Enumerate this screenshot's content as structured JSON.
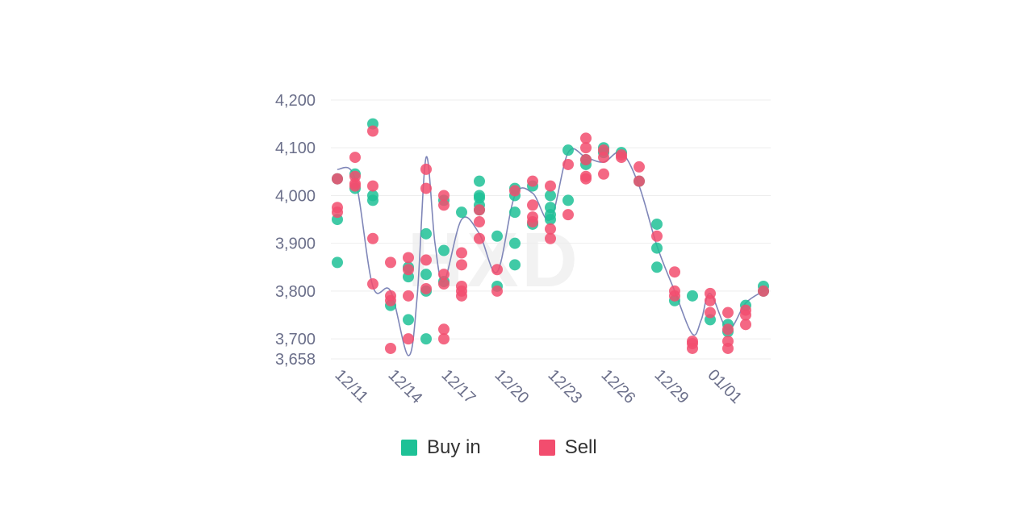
{
  "watermark": "HXD",
  "chart_data": {
    "type": "scatter",
    "ylim": [
      3658,
      4200
    ],
    "y_ticks": [
      "4,200",
      "4,100",
      "4,000",
      "3,900",
      "3,800",
      "3,700",
      "3,658"
    ],
    "y_tick_values": [
      4200,
      4100,
      4000,
      3900,
      3800,
      3700,
      3658
    ],
    "x_ticks": [
      "12/11",
      "12/14",
      "12/17",
      "12/20",
      "12/23",
      "12/26",
      "12/29",
      "01/01"
    ],
    "x_tick_days": [
      0,
      3,
      6,
      9,
      12,
      15,
      18,
      21
    ],
    "grid": true,
    "legend_position": "bottom-center",
    "colors": {
      "buy": "#1ec196",
      "sell": "#f24d6e",
      "trend": "#7f86b8"
    },
    "series": [
      {
        "name": "Buy in",
        "color": "#1ec196",
        "points": [
          [
            0,
            3950
          ],
          [
            0,
            3860
          ],
          [
            0,
            4035
          ],
          [
            1,
            4045
          ],
          [
            1,
            4015
          ],
          [
            2,
            4150
          ],
          [
            2,
            4000
          ],
          [
            2,
            3990
          ],
          [
            3,
            3770
          ],
          [
            4,
            3740
          ],
          [
            4,
            3830
          ],
          [
            4,
            3850
          ],
          [
            5,
            3920
          ],
          [
            5,
            3835
          ],
          [
            5,
            3800
          ],
          [
            5,
            3700
          ],
          [
            6,
            3885
          ],
          [
            6,
            3820
          ],
          [
            6,
            3990
          ],
          [
            7,
            3965
          ],
          [
            8,
            4030
          ],
          [
            8,
            4000
          ],
          [
            8,
            3995
          ],
          [
            8,
            3980
          ],
          [
            8,
            3970
          ],
          [
            9,
            3915
          ],
          [
            9,
            3810
          ],
          [
            10,
            4015
          ],
          [
            10,
            3965
          ],
          [
            10,
            3900
          ],
          [
            10,
            3855
          ],
          [
            10,
            4000
          ],
          [
            11,
            4020
          ],
          [
            11,
            3940
          ],
          [
            12,
            4000
          ],
          [
            12,
            3975
          ],
          [
            12,
            3960
          ],
          [
            12,
            3950
          ],
          [
            13,
            4095
          ],
          [
            13,
            3990
          ],
          [
            14,
            4075
          ],
          [
            14,
            4065
          ],
          [
            15,
            4100
          ],
          [
            15,
            4090
          ],
          [
            16,
            4090
          ],
          [
            17,
            4030
          ],
          [
            18,
            3940
          ],
          [
            18,
            3890
          ],
          [
            18,
            3850
          ],
          [
            19,
            3780
          ],
          [
            20,
            3790
          ],
          [
            21,
            3740
          ],
          [
            22,
            3730
          ],
          [
            22,
            3715
          ],
          [
            23,
            3770
          ],
          [
            24,
            3810
          ],
          [
            24,
            3800
          ]
        ]
      },
      {
        "name": "Sell",
        "color": "#f24d6e",
        "points": [
          [
            0,
            4035
          ],
          [
            0,
            3975
          ],
          [
            0,
            3965
          ],
          [
            1,
            4080
          ],
          [
            1,
            4040
          ],
          [
            1,
            4025
          ],
          [
            1,
            4020
          ],
          [
            2,
            4135
          ],
          [
            2,
            4020
          ],
          [
            2,
            3910
          ],
          [
            2,
            3815
          ],
          [
            3,
            3790
          ],
          [
            3,
            3780
          ],
          [
            3,
            3680
          ],
          [
            3,
            3860
          ],
          [
            4,
            3870
          ],
          [
            4,
            3845
          ],
          [
            4,
            3790
          ],
          [
            4,
            3700
          ],
          [
            5,
            4055
          ],
          [
            5,
            4015
          ],
          [
            5,
            3865
          ],
          [
            5,
            3805
          ],
          [
            6,
            4000
          ],
          [
            6,
            3980
          ],
          [
            6,
            3835
          ],
          [
            6,
            3720
          ],
          [
            6,
            3700
          ],
          [
            6,
            3815
          ],
          [
            7,
            3880
          ],
          [
            7,
            3855
          ],
          [
            7,
            3810
          ],
          [
            7,
            3790
          ],
          [
            7,
            3800
          ],
          [
            8,
            3970
          ],
          [
            8,
            3945
          ],
          [
            8,
            3910
          ],
          [
            9,
            3845
          ],
          [
            9,
            3800
          ],
          [
            10,
            4010
          ],
          [
            11,
            4030
          ],
          [
            11,
            3980
          ],
          [
            11,
            3955
          ],
          [
            11,
            3945
          ],
          [
            12,
            4020
          ],
          [
            12,
            3930
          ],
          [
            12,
            3910
          ],
          [
            13,
            4065
          ],
          [
            13,
            3960
          ],
          [
            14,
            4120
          ],
          [
            14,
            4100
          ],
          [
            14,
            4075
          ],
          [
            14,
            4040
          ],
          [
            14,
            4035
          ],
          [
            15,
            4095
          ],
          [
            15,
            4080
          ],
          [
            15,
            4045
          ],
          [
            16,
            4085
          ],
          [
            16,
            4080
          ],
          [
            17,
            4060
          ],
          [
            17,
            4030
          ],
          [
            18,
            3915
          ],
          [
            19,
            3840
          ],
          [
            19,
            3800
          ],
          [
            19,
            3790
          ],
          [
            20,
            3695
          ],
          [
            20,
            3690
          ],
          [
            20,
            3680
          ],
          [
            21,
            3795
          ],
          [
            21,
            3780
          ],
          [
            21,
            3755
          ],
          [
            22,
            3755
          ],
          [
            22,
            3720
          ],
          [
            22,
            3695
          ],
          [
            22,
            3680
          ],
          [
            23,
            3760
          ],
          [
            23,
            3750
          ],
          [
            23,
            3730
          ],
          [
            24,
            3800
          ]
        ]
      },
      {
        "name": "trend",
        "color": "#7f86b8",
        "points": [
          [
            0,
            4055
          ],
          [
            1,
            4035
          ],
          [
            2,
            3810
          ],
          [
            3,
            3800
          ],
          [
            4,
            3665
          ],
          [
            4.5,
            3790
          ],
          [
            5,
            4080
          ],
          [
            5.5,
            3900
          ],
          [
            6,
            3820
          ],
          [
            7,
            3950
          ],
          [
            8,
            3920
          ],
          [
            9,
            3840
          ],
          [
            10,
            4000
          ],
          [
            11,
            4005
          ],
          [
            12,
            3950
          ],
          [
            13,
            4090
          ],
          [
            14,
            4080
          ],
          [
            15,
            4070
          ],
          [
            16,
            4090
          ],
          [
            17,
            4020
          ],
          [
            18,
            3895
          ],
          [
            19,
            3800
          ],
          [
            20,
            3710
          ],
          [
            20.5,
            3740
          ],
          [
            21,
            3795
          ],
          [
            22,
            3720
          ],
          [
            23,
            3775
          ],
          [
            24,
            3800
          ]
        ]
      }
    ]
  },
  "legend": {
    "buy_label": "Buy in",
    "sell_label": "Sell"
  }
}
